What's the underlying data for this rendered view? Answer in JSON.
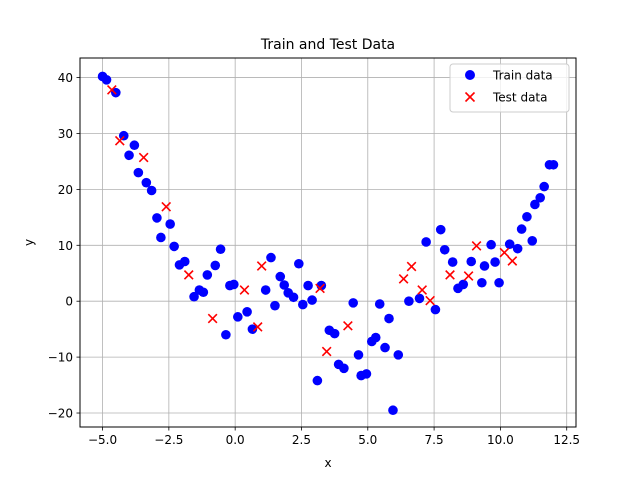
{
  "chart_data": {
    "type": "scatter",
    "title": "Train and Test Data",
    "xlabel": "x",
    "ylabel": "y",
    "xlim": [
      -5.85,
      12.85
    ],
    "ylim": [
      -22.5,
      43.5
    ],
    "xticks": [
      -5.0,
      -2.5,
      0.0,
      2.5,
      5.0,
      7.5,
      10.0,
      12.5
    ],
    "xtick_labels": [
      "−5.0",
      "−2.5",
      "0.0",
      "2.5",
      "5.0",
      "7.5",
      "10.0",
      "12.5"
    ],
    "yticks": [
      -20,
      -10,
      0,
      10,
      20,
      30,
      40
    ],
    "ytick_labels": [
      "−20",
      "−10",
      "0",
      "10",
      "20",
      "30",
      "40"
    ],
    "grid": true,
    "legend_position": "top-right",
    "series": [
      {
        "name": "Train data",
        "marker": "circle",
        "color": "#0000ff",
        "points": [
          [
            -5.0,
            40.2
          ],
          [
            -4.85,
            39.6
          ],
          [
            -4.5,
            37.3
          ],
          [
            -4.2,
            29.6
          ],
          [
            -4.0,
            26.1
          ],
          [
            -3.8,
            27.9
          ],
          [
            -3.65,
            23.0
          ],
          [
            -3.35,
            21.2
          ],
          [
            -3.15,
            19.8
          ],
          [
            -2.95,
            14.9
          ],
          [
            -2.8,
            11.4
          ],
          [
            -2.45,
            13.8
          ],
          [
            -2.3,
            9.8
          ],
          [
            -2.1,
            6.5
          ],
          [
            -1.9,
            7.1
          ],
          [
            -1.55,
            0.8
          ],
          [
            -1.35,
            2.0
          ],
          [
            -1.2,
            1.6
          ],
          [
            -1.05,
            4.7
          ],
          [
            -0.75,
            6.4
          ],
          [
            -0.55,
            9.3
          ],
          [
            -0.35,
            -6.0
          ],
          [
            -0.2,
            2.8
          ],
          [
            -0.05,
            3.0
          ],
          [
            0.1,
            -2.8
          ],
          [
            0.45,
            -1.9
          ],
          [
            0.65,
            -5.0
          ],
          [
            1.15,
            2.0
          ],
          [
            1.35,
            7.8
          ],
          [
            1.5,
            -0.8
          ],
          [
            1.7,
            4.4
          ],
          [
            1.85,
            2.9
          ],
          [
            2.0,
            1.5
          ],
          [
            2.2,
            0.7
          ],
          [
            2.4,
            6.7
          ],
          [
            2.55,
            -0.6
          ],
          [
            2.75,
            2.8
          ],
          [
            2.9,
            0.2
          ],
          [
            3.1,
            -14.2
          ],
          [
            3.25,
            2.8
          ],
          [
            3.55,
            -5.2
          ],
          [
            3.75,
            -5.8
          ],
          [
            3.9,
            -11.3
          ],
          [
            4.1,
            -12.0
          ],
          [
            4.45,
            -0.3
          ],
          [
            4.65,
            -9.6
          ],
          [
            4.75,
            -13.3
          ],
          [
            4.95,
            -13.0
          ],
          [
            5.15,
            -7.2
          ],
          [
            5.3,
            -6.5
          ],
          [
            5.45,
            -0.5
          ],
          [
            5.65,
            -8.3
          ],
          [
            5.8,
            -3.1
          ],
          [
            5.95,
            -19.5
          ],
          [
            6.15,
            -9.6
          ],
          [
            6.55,
            0.0
          ],
          [
            6.95,
            0.5
          ],
          [
            7.2,
            10.6
          ],
          [
            7.55,
            -1.5
          ],
          [
            7.75,
            12.8
          ],
          [
            7.9,
            9.2
          ],
          [
            8.2,
            7.0
          ],
          [
            8.4,
            2.3
          ],
          [
            8.6,
            3.0
          ],
          [
            8.9,
            7.1
          ],
          [
            9.3,
            3.3
          ],
          [
            9.4,
            6.3
          ],
          [
            9.65,
            10.1
          ],
          [
            9.8,
            7.0
          ],
          [
            9.95,
            3.3
          ],
          [
            10.35,
            10.2
          ],
          [
            10.65,
            9.4
          ],
          [
            10.8,
            12.9
          ],
          [
            11.0,
            15.1
          ],
          [
            11.2,
            10.8
          ],
          [
            11.3,
            17.3
          ],
          [
            11.5,
            18.5
          ],
          [
            11.65,
            20.5
          ],
          [
            11.85,
            24.4
          ],
          [
            12.0,
            24.4
          ]
        ]
      },
      {
        "name": "Test data",
        "marker": "x",
        "color": "#ff0000",
        "points": [
          [
            -4.65,
            37.8
          ],
          [
            -4.35,
            28.7
          ],
          [
            -3.45,
            25.7
          ],
          [
            -2.6,
            16.9
          ],
          [
            -1.75,
            4.7
          ],
          [
            -0.85,
            -3.1
          ],
          [
            0.35,
            2.0
          ],
          [
            0.85,
            -4.6
          ],
          [
            1.0,
            6.3
          ],
          [
            3.2,
            2.3
          ],
          [
            3.45,
            -9.0
          ],
          [
            4.25,
            -4.4
          ],
          [
            6.35,
            4.0
          ],
          [
            6.65,
            6.2
          ],
          [
            7.05,
            2.0
          ],
          [
            7.35,
            0.1
          ],
          [
            8.1,
            4.7
          ],
          [
            8.8,
            4.5
          ],
          [
            9.1,
            9.9
          ],
          [
            10.15,
            8.7
          ],
          [
            10.45,
            7.2
          ]
        ]
      }
    ]
  }
}
